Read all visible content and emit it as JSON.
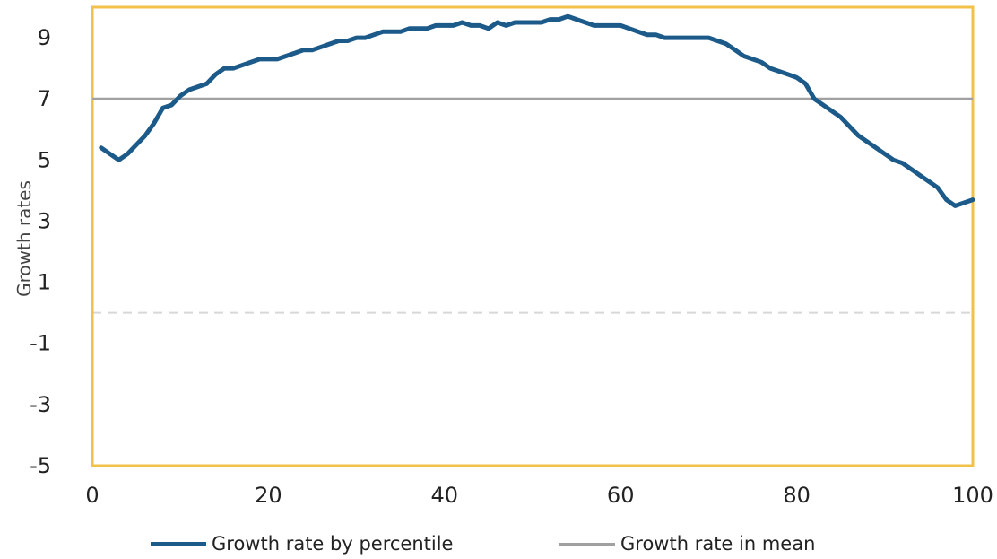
{
  "chart_data": {
    "type": "line",
    "title": "",
    "xlabel": "",
    "ylabel": "Growth rates",
    "xlim": [
      0,
      100
    ],
    "ylim": [
      -5,
      10
    ],
    "xticks": [
      0,
      20,
      40,
      60,
      80,
      100
    ],
    "yticks": [
      -5,
      -3,
      -1,
      1,
      3,
      5,
      7,
      9
    ],
    "zero_line": 0,
    "plot_border_color": "#f0c24a",
    "legend_position": "bottom",
    "series": [
      {
        "name": "Growth rate by percentile",
        "color": "#1c5a8a",
        "x": [
          1,
          2,
          3,
          4,
          5,
          6,
          7,
          8,
          9,
          10,
          11,
          12,
          13,
          14,
          15,
          16,
          17,
          18,
          19,
          20,
          21,
          22,
          23,
          24,
          25,
          26,
          27,
          28,
          29,
          30,
          31,
          32,
          33,
          34,
          35,
          36,
          37,
          38,
          39,
          40,
          41,
          42,
          43,
          44,
          45,
          46,
          47,
          48,
          49,
          50,
          51,
          52,
          53,
          54,
          55,
          56,
          57,
          58,
          59,
          60,
          61,
          62,
          63,
          64,
          65,
          66,
          67,
          68,
          69,
          70,
          71,
          72,
          73,
          74,
          75,
          76,
          77,
          78,
          79,
          80,
          81,
          82,
          83,
          84,
          85,
          86,
          87,
          88,
          89,
          90,
          91,
          92,
          93,
          94,
          95,
          96,
          97,
          98,
          99,
          100
        ],
        "values": [
          5.4,
          5.2,
          5.0,
          5.2,
          5.5,
          5.8,
          6.2,
          6.7,
          6.8,
          7.1,
          7.3,
          7.4,
          7.5,
          7.8,
          8.0,
          8.0,
          8.1,
          8.2,
          8.3,
          8.3,
          8.3,
          8.4,
          8.5,
          8.6,
          8.6,
          8.7,
          8.8,
          8.9,
          8.9,
          9.0,
          9.0,
          9.1,
          9.2,
          9.2,
          9.2,
          9.3,
          9.3,
          9.3,
          9.4,
          9.4,
          9.4,
          9.5,
          9.4,
          9.4,
          9.3,
          9.5,
          9.4,
          9.5,
          9.5,
          9.5,
          9.5,
          9.6,
          9.6,
          9.7,
          9.6,
          9.5,
          9.4,
          9.4,
          9.4,
          9.4,
          9.3,
          9.2,
          9.1,
          9.1,
          9.0,
          9.0,
          9.0,
          9.0,
          9.0,
          9.0,
          8.9,
          8.8,
          8.6,
          8.4,
          8.3,
          8.2,
          8.0,
          7.9,
          7.8,
          7.7,
          7.5,
          7.0,
          6.8,
          6.6,
          6.4,
          6.1,
          5.8,
          5.6,
          5.4,
          5.2,
          5.0,
          4.9,
          4.7,
          4.5,
          4.3,
          4.1,
          3.7,
          3.5,
          3.6,
          3.7
        ]
      },
      {
        "name": "Growth rate in mean",
        "color": "#a0a0a0",
        "x": [
          0,
          100
        ],
        "values": [
          7.0,
          7.0
        ]
      }
    ]
  }
}
